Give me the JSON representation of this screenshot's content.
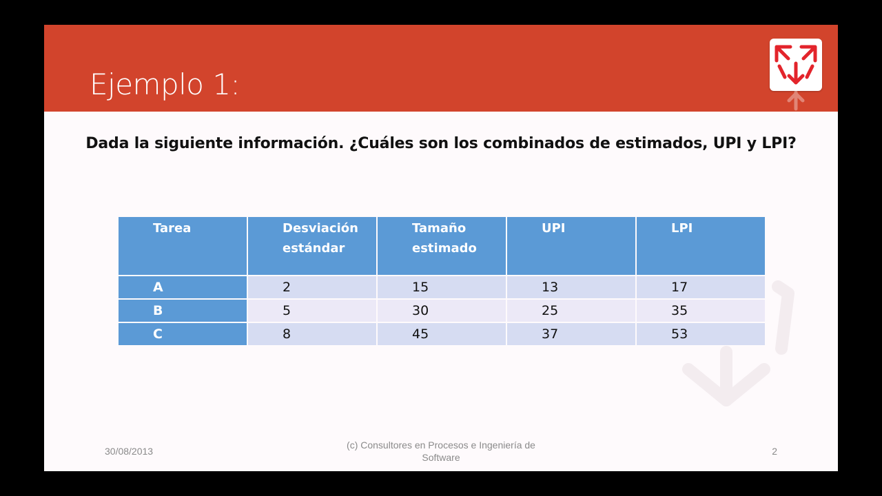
{
  "slide": {
    "title": "Ejemplo 1:",
    "question": "Dada la siguiente información. ¿Cuáles son los combinados de estimados, UPI y LPI?"
  },
  "table": {
    "headers": [
      "Tarea",
      "Desviación estándar",
      "Tamaño estimado",
      "UPI",
      "LPI"
    ],
    "rows": [
      [
        "A",
        "2",
        "15",
        "13",
        "17"
      ],
      [
        "B",
        "5",
        "30",
        "25",
        "35"
      ],
      [
        "C",
        "8",
        "45",
        "37",
        "53"
      ]
    ]
  },
  "footer": {
    "date": "30/08/2013",
    "center": "(c) Consultores en Procesos e Ingeniería de Software",
    "page": "2"
  },
  "colors": {
    "header_band": "#d2442c",
    "table_header": "#5b9ad6",
    "row_odd": "#d6dcf2",
    "row_even": "#ece9f7",
    "logo_red": "#e3242b"
  },
  "icons": {
    "logo": "arrows-cube-logo-icon",
    "watermark": "arrows-watermark-icon"
  }
}
